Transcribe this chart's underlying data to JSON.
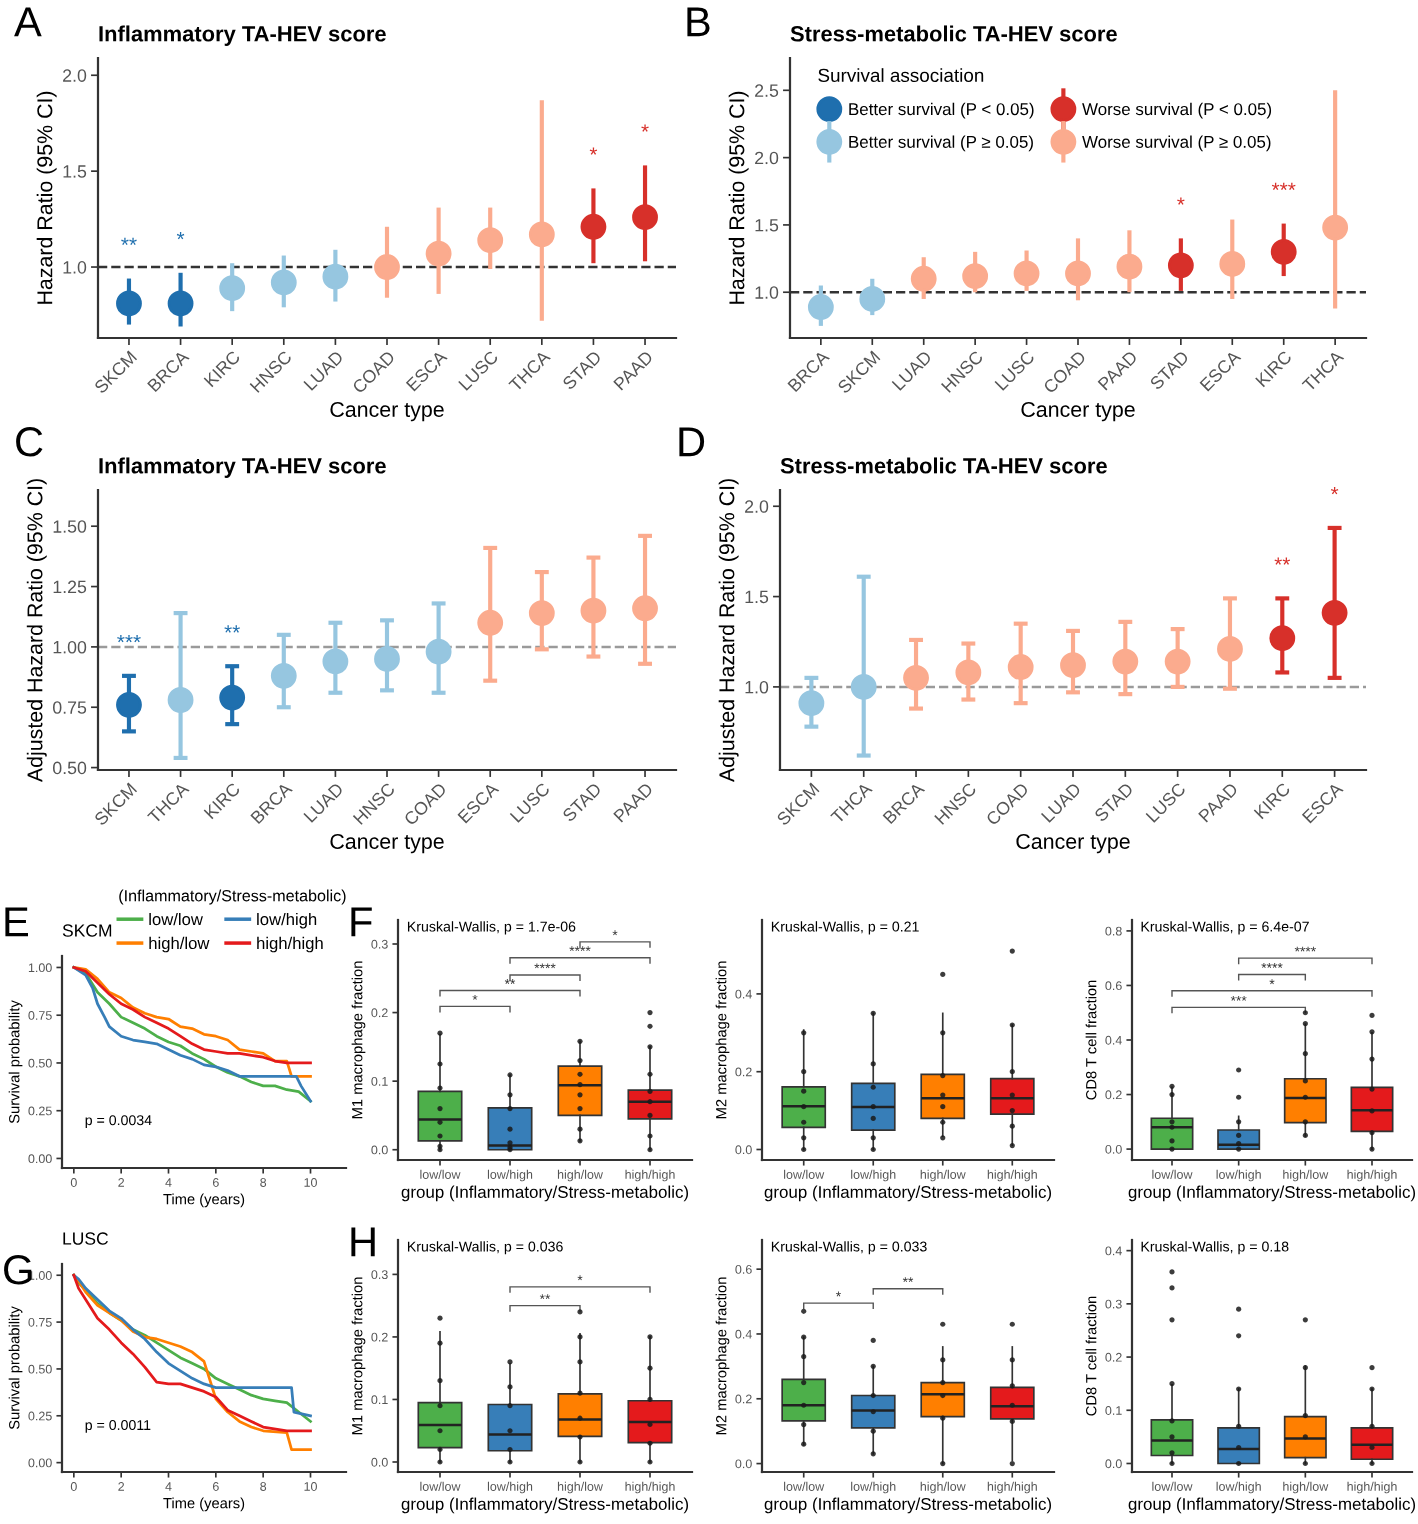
{
  "chart_data": [
    {
      "type": "scatter",
      "title": "Inflammatory TA-HEV score",
      "xlabel": "Cancer type",
      "ylabel": "Hazard Ratio (95% CI)",
      "marker": "circle",
      "categories": [
        "SKCM",
        "BRCA",
        "KIRC",
        "HNSC",
        "LUAD",
        "COAD",
        "ESCA",
        "LUSC",
        "THCA",
        "STAD",
        "PAAD"
      ],
      "series": [
        {
          "color": "#1f6fae",
          "values": [
            0.81,
            0.81,
            null,
            null,
            null,
            null,
            null,
            null,
            null,
            null,
            null
          ],
          "errors": [
            [
              0.7,
              0.94
            ],
            [
              0.69,
              0.97
            ],
            null,
            null,
            null,
            null,
            null,
            null,
            null,
            null,
            null
          ]
        },
        {
          "color": "#96c6e0",
          "values": [
            null,
            null,
            0.89,
            0.92,
            0.95,
            null,
            null,
            null,
            null,
            null,
            null
          ],
          "errors": [
            null,
            null,
            [
              0.77,
              1.02
            ],
            [
              0.79,
              1.06
            ],
            [
              0.82,
              1.09
            ],
            null,
            null,
            null,
            null,
            null,
            null
          ]
        },
        {
          "color": "#fbab8e",
          "values": [
            null,
            null,
            null,
            null,
            null,
            1.0,
            1.07,
            1.14,
            1.17,
            null,
            null
          ],
          "errors": [
            null,
            null,
            null,
            null,
            null,
            [
              0.84,
              1.21
            ],
            [
              0.86,
              1.31
            ],
            [
              0.99,
              1.31
            ],
            [
              0.72,
              1.87
            ],
            null,
            null
          ]
        },
        {
          "color": "#d7302a",
          "values": [
            null,
            null,
            null,
            null,
            null,
            null,
            null,
            null,
            null,
            1.21,
            1.26
          ],
          "errors": [
            null,
            null,
            null,
            null,
            null,
            null,
            null,
            null,
            null,
            [
              1.02,
              1.41
            ],
            [
              1.03,
              1.53
            ]
          ]
        }
      ],
      "ylim": [
        0.63,
        2.09
      ],
      "yticks": [
        {
          "value": 1.0,
          "label": "1.0"
        },
        {
          "value": 1.5,
          "label": "1.5"
        },
        {
          "value": 2.0,
          "label": "2.0"
        }
      ],
      "ref_lines": [
        {
          "axis": "y",
          "value": 1.0,
          "color": "#333333",
          "line_style": "dashed"
        }
      ],
      "annotations": [
        "A",
        {
          "text": "**",
          "x": "SKCM",
          "y": 0.94
        },
        {
          "text": "*",
          "x": "BRCA",
          "y": 0.97
        },
        {
          "text": "*",
          "x": "STAD",
          "y": 1.41
        },
        {
          "text": "*",
          "x": "PAAD",
          "y": 1.53
        }
      ]
    },
    {
      "type": "scatter",
      "title": "Stress-metabolic TA-HEV score",
      "xlabel": "Cancer type",
      "ylabel": "Hazard Ratio (95% CI)",
      "marker": "circle",
      "legend": "top left",
      "legend_title": "Survival association",
      "categories": [
        "BRCA",
        "SKCM",
        "LUAD",
        "HNSC",
        "LUSC",
        "COAD",
        "PAAD",
        "STAD",
        "ESCA",
        "KIRC",
        "THCA"
      ],
      "series": [
        {
          "name": "Better survival (P < 0.05)",
          "color": "#1f6fae",
          "values": [
            null,
            null,
            null,
            null,
            null,
            null,
            null,
            null,
            null,
            null,
            null
          ]
        },
        {
          "name": "Better survival (P ≥ 0.05)",
          "color": "#96c6e0",
          "values": [
            0.89,
            0.95,
            null,
            null,
            null,
            null,
            null,
            null,
            null,
            null,
            null
          ],
          "errors": [
            [
              0.75,
              1.05
            ],
            [
              0.83,
              1.1
            ],
            null,
            null,
            null,
            null,
            null,
            null,
            null,
            null,
            null
          ]
        },
        {
          "name": "Worse survival (P < 0.05)",
          "color": "#d7302a",
          "values": [
            null,
            null,
            null,
            null,
            null,
            null,
            null,
            1.2,
            null,
            1.3,
            null
          ],
          "errors": [
            null,
            null,
            null,
            null,
            null,
            null,
            null,
            [
              1.01,
              1.4
            ],
            null,
            [
              1.12,
              1.51
            ],
            null
          ]
        },
        {
          "name": "Worse survival (P ≥ 0.05)",
          "color": "#fbab8e",
          "values": [
            null,
            null,
            1.1,
            1.12,
            1.14,
            1.14,
            1.19,
            null,
            1.21,
            null,
            1.48
          ],
          "errors": [
            null,
            null,
            [
              0.95,
              1.26
            ],
            [
              1.0,
              1.3
            ],
            [
              1.01,
              1.31
            ],
            [
              0.94,
              1.4
            ],
            [
              1.0,
              1.46
            ],
            null,
            [
              0.95,
              1.54
            ],
            null,
            [
              0.88,
              2.5
            ]
          ]
        }
      ],
      "ylim": [
        0.66,
        2.74
      ],
      "yticks": [
        {
          "value": 1.0,
          "label": "1.0"
        },
        {
          "value": 1.5,
          "label": "1.5"
        },
        {
          "value": 2.0,
          "label": "2.0"
        },
        {
          "value": 2.5,
          "label": "2.5"
        }
      ],
      "ref_lines": [
        {
          "axis": "y",
          "value": 1.0,
          "color": "#333333",
          "line_style": "dashed"
        }
      ],
      "annotations": [
        "B",
        {
          "text": "*",
          "x": "STAD",
          "y": 1.4
        },
        {
          "text": "***",
          "x": "KIRC",
          "y": 1.51
        }
      ]
    },
    {
      "type": "scatter",
      "title": "Inflammatory TA-HEV score",
      "xlabel": "Cancer type",
      "ylabel": "Adjusted Hazard Ratio (95% CI)",
      "marker": "circle",
      "categories": [
        "SKCM",
        "THCA",
        "KIRC",
        "BRCA",
        "LUAD",
        "HNSC",
        "COAD",
        "ESCA",
        "LUSC",
        "STAD",
        "PAAD"
      ],
      "series": [
        {
          "color": "#1f6fae",
          "values": [
            0.76,
            null,
            0.79,
            null,
            null,
            null,
            null,
            null,
            null,
            null,
            null
          ],
          "errors": [
            [
              0.65,
              0.88
            ],
            null,
            [
              0.68,
              0.92
            ],
            null,
            null,
            null,
            null,
            null,
            null,
            null,
            null
          ]
        },
        {
          "color": "#96c6e0",
          "values": [
            null,
            0.78,
            null,
            0.88,
            0.94,
            0.95,
            0.98,
            null,
            null,
            null,
            null
          ],
          "errors": [
            null,
            [
              0.54,
              1.14
            ],
            null,
            [
              0.75,
              1.05
            ],
            [
              0.81,
              1.1
            ],
            [
              0.82,
              1.11
            ],
            [
              0.81,
              1.18
            ],
            null,
            null,
            null,
            null
          ]
        },
        {
          "color": "#fbab8e",
          "values": [
            null,
            null,
            null,
            null,
            null,
            null,
            null,
            1.1,
            1.14,
            1.15,
            1.16
          ],
          "errors": [
            null,
            null,
            null,
            null,
            null,
            null,
            null,
            [
              0.86,
              1.41
            ],
            [
              0.99,
              1.31
            ],
            [
              0.96,
              1.37
            ],
            [
              0.93,
              1.46
            ]
          ]
        }
      ],
      "ylim": [
        0.49,
        1.65
      ],
      "yticks": [
        {
          "value": 0.5,
          "label": "0.50"
        },
        {
          "value": 0.75,
          "label": "0.75"
        },
        {
          "value": 1.0,
          "label": "1.00"
        },
        {
          "value": 1.25,
          "label": "1.25"
        },
        {
          "value": 1.5,
          "label": "1.50"
        }
      ],
      "ref_lines": [
        {
          "axis": "y",
          "value": 1.0,
          "color": "#9a9a9a",
          "line_style": "dashed"
        }
      ],
      "annotations": [
        "C",
        {
          "text": "***",
          "x": "SKCM",
          "y": 0.88
        },
        {
          "text": "**",
          "x": "KIRC",
          "y": 0.92
        }
      ]
    },
    {
      "type": "scatter",
      "title": "Stress-metabolic TA-HEV score",
      "xlabel": "Cancer type",
      "ylabel": "Adjusted Hazard Ratio (95% CI)",
      "marker": "circle",
      "categories": [
        "SKCM",
        "THCA",
        "BRCA",
        "HNSC",
        "COAD",
        "LUAD",
        "STAD",
        "LUSC",
        "PAAD",
        "KIRC",
        "ESCA"
      ],
      "series": [
        {
          "color": "#96c6e0",
          "values": [
            0.91,
            1.0,
            null,
            null,
            null,
            null,
            null,
            null,
            null,
            null,
            null
          ],
          "errors": [
            [
              0.78,
              1.05
            ],
            [
              0.62,
              1.61
            ],
            null,
            null,
            null,
            null,
            null,
            null,
            null,
            null,
            null
          ]
        },
        {
          "color": "#fbab8e",
          "values": [
            null,
            null,
            1.05,
            1.08,
            1.11,
            1.12,
            1.14,
            1.14,
            1.21,
            null,
            null
          ],
          "errors": [
            null,
            null,
            [
              0.88,
              1.26
            ],
            [
              0.93,
              1.24
            ],
            [
              0.91,
              1.35
            ],
            [
              0.97,
              1.31
            ],
            [
              0.96,
              1.36
            ],
            [
              1.0,
              1.32
            ],
            [
              0.99,
              1.49
            ],
            null,
            null
          ]
        },
        {
          "color": "#d7302a",
          "values": [
            null,
            null,
            null,
            null,
            null,
            null,
            null,
            null,
            null,
            1.27,
            1.41
          ],
          "errors": [
            null,
            null,
            null,
            null,
            null,
            null,
            null,
            null,
            null,
            [
              1.08,
              1.49
            ],
            [
              1.05,
              1.88
            ]
          ]
        }
      ],
      "ylim": [
        0.54,
        2.09
      ],
      "yticks": [
        {
          "value": 1.0,
          "label": "1.0"
        },
        {
          "value": 1.5,
          "label": "1.5"
        },
        {
          "value": 2.0,
          "label": "2.0"
        }
      ],
      "ref_lines": [
        {
          "axis": "y",
          "value": 1.0,
          "color": "#9a9a9a",
          "line_style": "dashed"
        }
      ],
      "annotations": [
        "D",
        {
          "text": "**",
          "x": "KIRC",
          "y": 1.49
        },
        {
          "text": "*",
          "x": "ESCA",
          "y": 1.88
        }
      ]
    },
    {
      "type": "line",
      "title": "SKCM",
      "xlabel": "Time (years)",
      "ylabel": "Survival probability",
      "legend": "top",
      "legend_title": "(Inflammatory/Stress-metabolic)",
      "series": [
        {
          "name": "low/low",
          "color": "#4daf4a",
          "x": [
            0,
            0.5,
            1,
            1.5,
            2,
            2.5,
            3,
            3.5,
            4,
            4.5,
            5,
            5.5,
            6,
            6.5,
            7,
            7.5,
            8,
            8.5,
            9,
            9.5,
            10
          ],
          "values": [
            1.0,
            0.97,
            0.87,
            0.81,
            0.74,
            0.71,
            0.68,
            0.64,
            0.61,
            0.59,
            0.55,
            0.52,
            0.48,
            0.45,
            0.43,
            0.4,
            0.38,
            0.38,
            0.36,
            0.35,
            0.3
          ]
        },
        {
          "name": "high/low",
          "color": "#ff7f00",
          "x": [
            0,
            0.5,
            1,
            1.5,
            2,
            2.5,
            3,
            3.5,
            4,
            4.5,
            5,
            5.5,
            6,
            6.5,
            7,
            7.5,
            8,
            8.5,
            9,
            9.2,
            10
          ],
          "values": [
            1.0,
            0.99,
            0.94,
            0.87,
            0.84,
            0.79,
            0.76,
            0.74,
            0.73,
            0.69,
            0.68,
            0.65,
            0.64,
            0.62,
            0.57,
            0.56,
            0.55,
            0.51,
            0.51,
            0.43,
            0.43
          ]
        },
        {
          "name": "low/high",
          "color": "#377eb8",
          "x": [
            0,
            0.5,
            0.8,
            1,
            1.3,
            1.5,
            2,
            2.5,
            3,
            3.5,
            4,
            4.5,
            5,
            5.5,
            6,
            6.5,
            7,
            9.4,
            9.6,
            10
          ],
          "values": [
            1.0,
            0.96,
            0.89,
            0.81,
            0.74,
            0.69,
            0.64,
            0.62,
            0.61,
            0.6,
            0.57,
            0.54,
            0.52,
            0.49,
            0.48,
            0.46,
            0.43,
            0.43,
            0.38,
            0.3
          ]
        },
        {
          "name": "high/high",
          "color": "#e41a1c",
          "x": [
            0,
            0.5,
            1,
            1.5,
            2,
            2.5,
            3,
            3.5,
            4,
            4.5,
            5,
            5.5,
            6,
            6.5,
            7,
            8,
            8.5,
            9,
            10
          ],
          "values": [
            1.0,
            0.98,
            0.92,
            0.86,
            0.81,
            0.78,
            0.74,
            0.71,
            0.68,
            0.64,
            0.6,
            0.57,
            0.56,
            0.55,
            0.55,
            0.53,
            0.51,
            0.5,
            0.5
          ]
        }
      ],
      "xlim": [
        -0.5,
        11.5
      ],
      "xticks": [
        0,
        2,
        4,
        6,
        8,
        10
      ],
      "ylim": [
        -0.05,
        1.06
      ],
      "yticks": [
        {
          "value": 0,
          "label": "0.00"
        },
        {
          "value": 0.25,
          "label": "0.25"
        },
        {
          "value": 0.5,
          "label": "0.50"
        },
        {
          "value": 0.75,
          "label": "0.75"
        },
        {
          "value": 1.0,
          "label": "1.00"
        }
      ],
      "annotations": [
        "E",
        "p = 0.0034"
      ]
    },
    {
      "type": "box",
      "xlabel": "group (Inflammatory/Stress-metabolic)",
      "ylabel": "M1 macrophage fraction",
      "marker": "circle",
      "categories": [
        "low/low",
        "low/high",
        "high/low",
        "high/high"
      ],
      "colors": [
        "#4daf4a",
        "#377eb8",
        "#ff7f00",
        "#e41a1c"
      ],
      "boxes": [
        {
          "low": 0.0,
          "q1": 0.013,
          "median": 0.044,
          "q3": 0.085,
          "high": 0.168
        },
        {
          "low": 0.0,
          "q1": 0.0,
          "median": 0.006,
          "q3": 0.061,
          "high": 0.109
        },
        {
          "low": 0.013,
          "q1": 0.05,
          "median": 0.094,
          "q3": 0.122,
          "high": 0.158
        },
        {
          "low": 0.0,
          "q1": 0.045,
          "median": 0.07,
          "q3": 0.087,
          "high": 0.15
        }
      ],
      "series": [
        {
          "type": "scatter",
          "color": "#1a1a1a",
          "x": [
            "low/low",
            "low/low",
            "low/low",
            "low/low",
            "low/low",
            "low/low",
            "low/low",
            "low/low",
            "low/high",
            "low/high",
            "low/high",
            "low/high",
            "low/high",
            "low/high",
            "low/high",
            "high/low",
            "high/low",
            "high/low",
            "high/low",
            "high/low",
            "high/low",
            "high/low",
            "high/low",
            "high/high",
            "high/high",
            "high/high",
            "high/high",
            "high/high",
            "high/high",
            "high/high",
            "high/high",
            "high/high"
          ],
          "values": [
            0.0,
            0.005,
            0.02,
            0.04,
            0.06,
            0.09,
            0.125,
            0.17,
            0.0,
            0.003,
            0.01,
            0.03,
            0.06,
            0.08,
            0.109,
            0.013,
            0.03,
            0.06,
            0.08,
            0.095,
            0.11,
            0.13,
            0.158,
            0.0,
            0.02,
            0.05,
            0.07,
            0.085,
            0.11,
            0.15,
            0.18,
            0.2
          ]
        }
      ],
      "ylim": [
        -0.015,
        0.335
      ],
      "yticks": [
        {
          "value": 0.0,
          "label": "0.0"
        },
        {
          "value": 0.1,
          "label": "0.1"
        },
        {
          "value": 0.2,
          "label": "0.2"
        },
        {
          "value": 0.3,
          "label": "0.3"
        }
      ],
      "annotations": [
        "F",
        "Kruskal-Wallis, p = 1.7e-06",
        "*",
        "**",
        "****",
        "****",
        "*"
      ]
    },
    {
      "type": "box",
      "xlabel": "group (Inflammatory/Stress-metabolic)",
      "ylabel": "M2 macrophage fraction",
      "marker": "circle",
      "categories": [
        "low/low",
        "low/high",
        "high/low",
        "high/high"
      ],
      "colors": [
        "#4daf4a",
        "#377eb8",
        "#ff7f00",
        "#e41a1c"
      ],
      "boxes": [
        {
          "low": 0.0,
          "q1": 0.057,
          "median": 0.111,
          "q3": 0.161,
          "high": 0.307
        },
        {
          "low": 0.0,
          "q1": 0.05,
          "median": 0.109,
          "q3": 0.17,
          "high": 0.35
        },
        {
          "low": 0.034,
          "q1": 0.08,
          "median": 0.132,
          "q3": 0.193,
          "high": 0.35
        },
        {
          "low": 0.011,
          "q1": 0.091,
          "median": 0.132,
          "q3": 0.182,
          "high": 0.32
        }
      ],
      "series": [
        {
          "type": "scatter",
          "color": "#1a1a1a",
          "x": [
            "low/low",
            "low/low",
            "low/low",
            "low/low",
            "low/low",
            "low/low",
            "low/low",
            "low/high",
            "low/high",
            "low/high",
            "low/high",
            "low/high",
            "low/high",
            "low/high",
            "high/low",
            "high/low",
            "high/low",
            "high/low",
            "high/low",
            "high/low",
            "high/low",
            "high/high",
            "high/high",
            "high/high",
            "high/high",
            "high/high",
            "high/high",
            "high/high"
          ],
          "values": [
            0.0,
            0.03,
            0.07,
            0.11,
            0.15,
            0.2,
            0.3,
            0.0,
            0.03,
            0.08,
            0.11,
            0.16,
            0.22,
            0.35,
            0.03,
            0.07,
            0.11,
            0.14,
            0.19,
            0.3,
            0.45,
            0.01,
            0.06,
            0.1,
            0.14,
            0.2,
            0.32,
            0.51
          ]
        }
      ],
      "ylim": [
        -0.027,
        0.59
      ],
      "yticks": [
        {
          "value": 0.0,
          "label": "0.0"
        },
        {
          "value": 0.2,
          "label": "0.2"
        },
        {
          "value": 0.4,
          "label": "0.4"
        }
      ],
      "annotations": [
        "Kruskal-Wallis, p = 0.21"
      ]
    },
    {
      "type": "box",
      "xlabel": "group (Inflammatory/Stress-metabolic)",
      "ylabel": "CD8 T cell fraction",
      "marker": "circle",
      "categories": [
        "low/low",
        "low/high",
        "high/low",
        "high/high"
      ],
      "colors": [
        "#4daf4a",
        "#377eb8",
        "#ff7f00",
        "#e41a1c"
      ],
      "boxes": [
        {
          "low": 0.0,
          "q1": 0.0,
          "median": 0.08,
          "q3": 0.113,
          "high": 0.226
        },
        {
          "low": 0.0,
          "q1": 0.0,
          "median": 0.016,
          "q3": 0.07,
          "high": 0.12
        },
        {
          "low": 0.048,
          "q1": 0.097,
          "median": 0.187,
          "q3": 0.258,
          "high": 0.458
        },
        {
          "low": 0.0,
          "q1": 0.065,
          "median": 0.142,
          "q3": 0.226,
          "high": 0.426
        }
      ],
      "series": [
        {
          "type": "scatter",
          "color": "#1a1a1a",
          "x": [
            "low/low",
            "low/low",
            "low/low",
            "low/low",
            "low/low",
            "low/low",
            "low/high",
            "low/high",
            "low/high",
            "low/high",
            "low/high",
            "low/high",
            "high/low",
            "high/low",
            "high/low",
            "high/low",
            "high/low",
            "high/low",
            "high/low",
            "high/high",
            "high/high",
            "high/high",
            "high/high",
            "high/high",
            "high/high",
            "high/high"
          ],
          "values": [
            0.0,
            0.03,
            0.08,
            0.1,
            0.2,
            0.23,
            0.0,
            0.02,
            0.05,
            0.1,
            0.19,
            0.29,
            0.05,
            0.1,
            0.19,
            0.25,
            0.35,
            0.46,
            0.5,
            0.0,
            0.06,
            0.14,
            0.22,
            0.33,
            0.43,
            0.49
          ]
        }
      ],
      "ylim": [
        -0.04,
        0.84
      ],
      "yticks": [
        {
          "value": 0.0,
          "label": "0.0"
        },
        {
          "value": 0.2,
          "label": "0.2"
        },
        {
          "value": 0.4,
          "label": "0.4"
        },
        {
          "value": 0.6,
          "label": "0.6"
        },
        {
          "value": 0.8,
          "label": "0.8"
        }
      ],
      "annotations": [
        "Kruskal-Wallis, p = 6.4e-07",
        "***",
        "*",
        "****",
        "****"
      ]
    },
    {
      "type": "line",
      "title": "LUSC",
      "xlabel": "Time (years)",
      "ylabel": "Survival probability",
      "series": [
        {
          "color": "#4daf4a",
          "x": [
            0,
            0.2,
            0.5,
            1,
            1.5,
            2,
            2.5,
            3,
            3.5,
            4,
            4.5,
            5,
            5.5,
            6,
            6.5,
            7,
            7.5,
            8,
            8.5,
            9,
            9.5,
            10
          ],
          "values": [
            1.0,
            0.96,
            0.92,
            0.85,
            0.8,
            0.76,
            0.71,
            0.68,
            0.64,
            0.6,
            0.56,
            0.53,
            0.5,
            0.45,
            0.42,
            0.39,
            0.36,
            0.34,
            0.33,
            0.32,
            0.27,
            0.22
          ]
        },
        {
          "color": "#ff7f00",
          "x": [
            0,
            0.2,
            0.5,
            1,
            1.5,
            2,
            2.5,
            3,
            3.5,
            4,
            4.5,
            5,
            5.5,
            5.7,
            5.9,
            6,
            6.5,
            7,
            7.5,
            8,
            9,
            9.2,
            10
          ],
          "values": [
            1.0,
            0.97,
            0.91,
            0.84,
            0.8,
            0.76,
            0.7,
            0.67,
            0.66,
            0.64,
            0.62,
            0.59,
            0.54,
            0.46,
            0.38,
            0.34,
            0.27,
            0.22,
            0.19,
            0.17,
            0.16,
            0.07,
            0.07
          ]
        },
        {
          "color": "#377eb8",
          "x": [
            0,
            0.2,
            0.5,
            1,
            1.5,
            2,
            2.5,
            3,
            3.5,
            4,
            4.5,
            5,
            5.5,
            6,
            9.2,
            9.3,
            10
          ],
          "values": [
            1.0,
            0.98,
            0.93,
            0.87,
            0.81,
            0.77,
            0.71,
            0.66,
            0.59,
            0.53,
            0.49,
            0.45,
            0.42,
            0.4,
            0.4,
            0.27,
            0.25
          ]
        },
        {
          "color": "#e41a1c",
          "x": [
            0,
            0.2,
            0.5,
            1,
            1.5,
            2,
            2.5,
            3,
            3.5,
            4,
            4.5,
            5,
            5.5,
            6,
            6.5,
            7,
            7.5,
            8,
            9,
            10
          ],
          "values": [
            1.0,
            0.93,
            0.87,
            0.77,
            0.71,
            0.64,
            0.58,
            0.51,
            0.43,
            0.42,
            0.42,
            0.4,
            0.38,
            0.35,
            0.28,
            0.25,
            0.22,
            0.19,
            0.17,
            0.17
          ]
        }
      ],
      "xlim": [
        -0.5,
        11.5
      ],
      "xticks": [
        0,
        2,
        4,
        6,
        8,
        10
      ],
      "ylim": [
        -0.05,
        1.06
      ],
      "yticks": [
        {
          "value": 0,
          "label": "0.00"
        },
        {
          "value": 0.25,
          "label": "0.25"
        },
        {
          "value": 0.5,
          "label": "0.50"
        },
        {
          "value": 0.75,
          "label": "0.75"
        },
        {
          "value": 1.0,
          "label": "1.00"
        }
      ],
      "annotations": [
        "G",
        "p = 0.0011"
      ]
    },
    {
      "type": "box",
      "xlabel": "group (Inflammatory/Stress-metabolic)",
      "ylabel": "M1 macrophage fraction",
      "marker": "circle",
      "categories": [
        "low/low",
        "low/high",
        "high/low",
        "high/high"
      ],
      "colors": [
        "#4daf4a",
        "#377eb8",
        "#ff7f00",
        "#e41a1c"
      ],
      "boxes": [
        {
          "low": 0.0,
          "q1": 0.023,
          "median": 0.059,
          "q3": 0.095,
          "high": 0.208
        },
        {
          "low": 0.0,
          "q1": 0.018,
          "median": 0.044,
          "q3": 0.092,
          "high": 0.157
        },
        {
          "low": 0.0,
          "q1": 0.041,
          "median": 0.068,
          "q3": 0.109,
          "high": 0.205
        },
        {
          "low": 0.0,
          "q1": 0.031,
          "median": 0.064,
          "q3": 0.098,
          "high": 0.2
        }
      ],
      "series": [
        {
          "type": "scatter",
          "color": "#1a1a1a",
          "x": [
            "low/low",
            "low/low",
            "low/low",
            "low/low",
            "low/low",
            "low/low",
            "low/low",
            "low/high",
            "low/high",
            "low/high",
            "low/high",
            "low/high",
            "low/high",
            "high/low",
            "high/low",
            "high/low",
            "high/low",
            "high/low",
            "high/low",
            "high/low",
            "high/high",
            "high/high",
            "high/high",
            "high/high",
            "high/high",
            "high/high"
          ],
          "values": [
            0.0,
            0.02,
            0.05,
            0.09,
            0.13,
            0.19,
            0.23,
            0.0,
            0.02,
            0.05,
            0.09,
            0.12,
            0.16,
            0.0,
            0.04,
            0.07,
            0.11,
            0.16,
            0.2,
            0.24,
            0.0,
            0.03,
            0.06,
            0.1,
            0.15,
            0.2
          ]
        }
      ],
      "ylim": [
        -0.016,
        0.355
      ],
      "yticks": [
        {
          "value": 0.0,
          "label": "0.0"
        },
        {
          "value": 0.1,
          "label": "0.1"
        },
        {
          "value": 0.2,
          "label": "0.2"
        },
        {
          "value": 0.3,
          "label": "0.3"
        }
      ],
      "annotations": [
        "H",
        "Kruskal-Wallis, p = 0.036",
        "**",
        "*"
      ]
    },
    {
      "type": "box",
      "xlabel": "group (Inflammatory/Stress-metabolic)",
      "ylabel": "M2 macrophage fraction",
      "marker": "circle",
      "categories": [
        "low/low",
        "low/high",
        "high/low",
        "high/high"
      ],
      "colors": [
        "#4daf4a",
        "#377eb8",
        "#ff7f00",
        "#e41a1c"
      ],
      "boxes": [
        {
          "low": 0.058,
          "q1": 0.132,
          "median": 0.18,
          "q3": 0.26,
          "high": 0.39
        },
        {
          "low": 0.03,
          "q1": 0.11,
          "median": 0.164,
          "q3": 0.21,
          "high": 0.3
        },
        {
          "low": 0.0,
          "q1": 0.145,
          "median": 0.214,
          "q3": 0.25,
          "high": 0.36
        },
        {
          "low": 0.01,
          "q1": 0.138,
          "median": 0.177,
          "q3": 0.235,
          "high": 0.36
        }
      ],
      "series": [
        {
          "type": "scatter",
          "color": "#1a1a1a",
          "x": [
            "low/low",
            "low/low",
            "low/low",
            "low/low",
            "low/low",
            "low/low",
            "low/low",
            "low/high",
            "low/high",
            "low/high",
            "low/high",
            "low/high",
            "low/high",
            "high/low",
            "high/low",
            "high/low",
            "high/low",
            "high/low",
            "high/low",
            "high/high",
            "high/high",
            "high/high",
            "high/high",
            "high/high",
            "high/high"
          ],
          "values": [
            0.06,
            0.12,
            0.18,
            0.25,
            0.33,
            0.39,
            0.47,
            0.03,
            0.1,
            0.16,
            0.21,
            0.3,
            0.38,
            0.0,
            0.14,
            0.21,
            0.25,
            0.32,
            0.43,
            0.0,
            0.13,
            0.18,
            0.24,
            0.32,
            0.43
          ]
        }
      ],
      "ylim": [
        -0.026,
        0.69
      ],
      "yticks": [
        {
          "value": 0.0,
          "label": "0.0"
        },
        {
          "value": 0.2,
          "label": "0.2"
        },
        {
          "value": 0.4,
          "label": "0.4"
        },
        {
          "value": 0.6,
          "label": "0.6"
        }
      ],
      "annotations": [
        "Kruskal-Wallis, p = 0.033",
        "*",
        "**"
      ]
    },
    {
      "type": "box",
      "xlabel": "group (Inflammatory/Stress-metabolic)",
      "ylabel": "CD8 T cell fraction",
      "marker": "circle",
      "categories": [
        "low/low",
        "low/high",
        "high/low",
        "high/high"
      ],
      "colors": [
        "#4daf4a",
        "#377eb8",
        "#ff7f00",
        "#e41a1c"
      ],
      "boxes": [
        {
          "low": 0.0,
          "q1": 0.015,
          "median": 0.043,
          "q3": 0.082,
          "high": 0.148
        },
        {
          "low": 0.0,
          "q1": 0.0,
          "median": 0.027,
          "q3": 0.067,
          "high": 0.14
        },
        {
          "low": 0.0,
          "q1": 0.011,
          "median": 0.047,
          "q3": 0.088,
          "high": 0.183
        },
        {
          "low": 0.0,
          "q1": 0.008,
          "median": 0.035,
          "q3": 0.067,
          "high": 0.14
        }
      ],
      "series": [
        {
          "type": "scatter",
          "color": "#1a1a1a",
          "x": [
            "low/low",
            "low/low",
            "low/low",
            "low/low",
            "low/low",
            "low/low",
            "low/low",
            "low/low",
            "low/high",
            "low/high",
            "low/high",
            "low/high",
            "low/high",
            "low/high",
            "high/low",
            "high/low",
            "high/low",
            "high/low",
            "high/low",
            "high/high",
            "high/high",
            "high/high",
            "high/high",
            "high/high"
          ],
          "values": [
            0.0,
            0.02,
            0.05,
            0.08,
            0.15,
            0.27,
            0.33,
            0.36,
            0.0,
            0.03,
            0.07,
            0.14,
            0.24,
            0.29,
            0.0,
            0.05,
            0.09,
            0.18,
            0.27,
            0.0,
            0.03,
            0.07,
            0.14,
            0.18
          ]
        }
      ],
      "ylim": [
        -0.016,
        0.42
      ],
      "yticks": [
        {
          "value": 0.0,
          "label": "0.0"
        },
        {
          "value": 0.1,
          "label": "0.1"
        },
        {
          "value": 0.2,
          "label": "0.2"
        },
        {
          "value": 0.3,
          "label": "0.3"
        },
        {
          "value": 0.4,
          "label": "0.4"
        }
      ],
      "annotations": [
        "Kruskal-Wallis, p = 0.18"
      ]
    }
  ]
}
